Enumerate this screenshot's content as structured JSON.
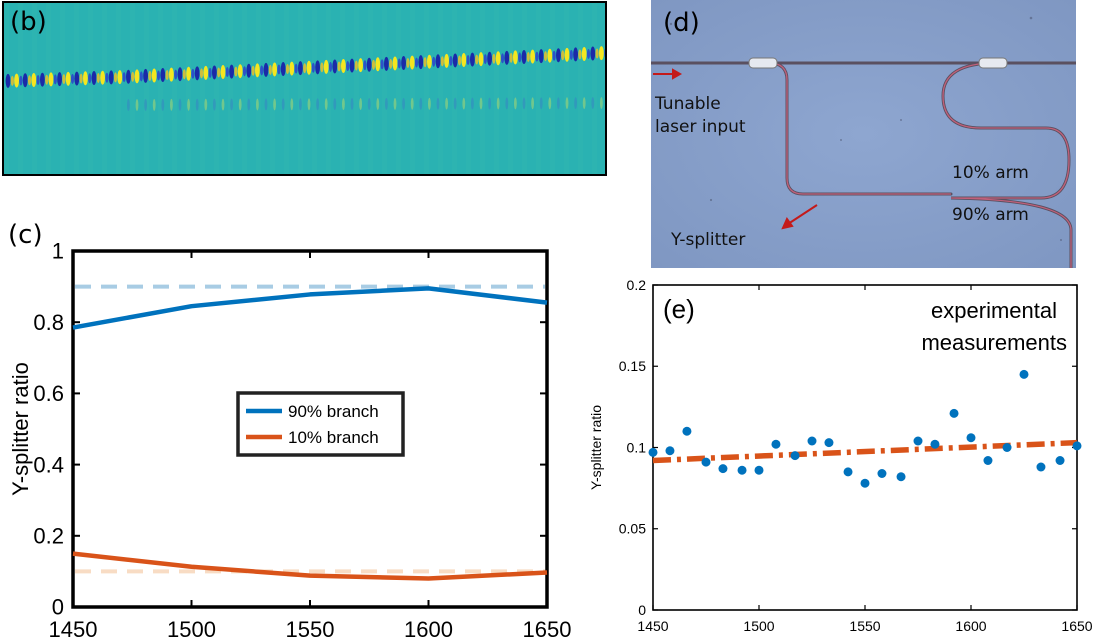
{
  "panels": {
    "b": {
      "label": "(b)"
    },
    "c": {
      "label": "(c)"
    },
    "d": {
      "label": "(d)",
      "annotations": {
        "input": "Tunable\nlaser input",
        "input_line1": "Tunable",
        "input_line2": "laser input",
        "arm10": "10% arm",
        "arm90": "90% arm",
        "splitter": "Y-splitter"
      }
    },
    "e": {
      "label": "(e)",
      "annotation_line1": "experimental",
      "annotation_line2": "measurements"
    }
  },
  "colors": {
    "blue": "#0072bd",
    "orange": "#d95319",
    "light_blue": "#a8cce4",
    "light_orange": "#f8dcc4",
    "background_b": "#2ab2b2",
    "background_d": "#8aa2cc",
    "waveguide": "#b84a60"
  },
  "chart_data": [
    {
      "id": "c",
      "type": "line",
      "ylabel": "Y-splitter ratio",
      "xlim": [
        1450,
        1650
      ],
      "ylim": [
        0,
        1
      ],
      "xticks": [
        "1450",
        "1500",
        "1550",
        "1600",
        "1650"
      ],
      "yticks": [
        "0",
        "0.2",
        "0.4",
        "0.6",
        "0.8",
        "1"
      ],
      "legend": "center",
      "grid": false,
      "series": [
        {
          "name": "90% branch",
          "color": "#0072bd",
          "x": [
            1450,
            1500,
            1550,
            1600,
            1650
          ],
          "y": [
            0.785,
            0.845,
            0.878,
            0.895,
            0.855
          ]
        },
        {
          "name": "10% branch",
          "color": "#d95319",
          "x": [
            1450,
            1500,
            1550,
            1600,
            1650
          ],
          "y": [
            0.15,
            0.113,
            0.088,
            0.08,
            0.097
          ]
        }
      ],
      "reference_lines": [
        {
          "y": 0.9,
          "color": "#a8cce4",
          "style": "dashed"
        },
        {
          "y": 0.1,
          "color": "#f8dcc4",
          "style": "dashed"
        }
      ]
    },
    {
      "id": "e",
      "type": "scatter",
      "ylabel": "Y-splitter ratio",
      "xlim": [
        1450,
        1650
      ],
      "ylim": [
        0,
        0.2
      ],
      "xticks": [
        "1450",
        "1500",
        "1550",
        "1600",
        "1650"
      ],
      "yticks": [
        "0",
        "0.05",
        "0.1",
        "0.15",
        "0.2"
      ],
      "grid": false,
      "points": {
        "color": "#0072bd",
        "x": [
          1450,
          1458,
          1466,
          1475,
          1483,
          1492,
          1500,
          1508,
          1517,
          1525,
          1533,
          1542,
          1550,
          1558,
          1567,
          1575,
          1583,
          1592,
          1600,
          1608,
          1617,
          1625,
          1633,
          1642,
          1650
        ],
        "y": [
          0.097,
          0.098,
          0.11,
          0.091,
          0.087,
          0.086,
          0.086,
          0.102,
          0.095,
          0.104,
          0.103,
          0.085,
          0.078,
          0.084,
          0.082,
          0.104,
          0.102,
          0.121,
          0.106,
          0.092,
          0.1,
          0.145,
          0.088,
          0.092,
          0.101
        ]
      },
      "trend": {
        "color": "#d95319",
        "style": "dash-dot",
        "x": [
          1450,
          1650
        ],
        "y": [
          0.092,
          0.103
        ]
      }
    }
  ]
}
